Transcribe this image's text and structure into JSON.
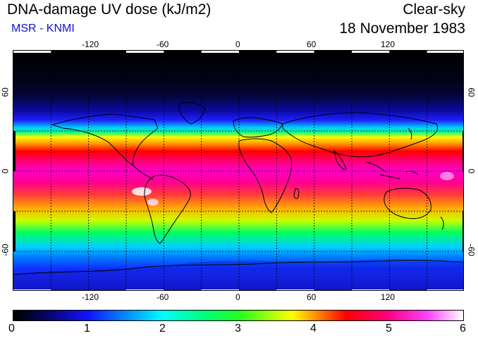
{
  "header": {
    "title": "DNA-damage UV dose (kJ/m2)",
    "subtitle": "MSR - KNMI",
    "condition": "Clear-sky",
    "date": "18 November 1983"
  },
  "map": {
    "projection": "equirectangular",
    "lon_range": [
      -180,
      180
    ],
    "lat_range": [
      -90,
      90
    ],
    "lon_ticks": [
      "-120",
      "-60",
      "0",
      "60",
      "120"
    ],
    "lat_ticks": [
      "60",
      "0",
      "-60"
    ],
    "grid_lons": [
      -150,
      -120,
      -90,
      -60,
      -30,
      0,
      30,
      60,
      90,
      120,
      150
    ],
    "grid_lats": [
      60,
      30,
      0,
      -30,
      -60
    ],
    "grid_style": "dashed"
  },
  "colorbar": {
    "min": 0,
    "max": 6,
    "labels": [
      "0",
      "1",
      "2",
      "3",
      "4",
      "5",
      "6"
    ],
    "colors": [
      "#000000",
      "#1212ff",
      "#00ffff",
      "#20ff20",
      "#ffff00",
      "#ff0000",
      "#ff0080",
      "#ffffff"
    ]
  }
}
